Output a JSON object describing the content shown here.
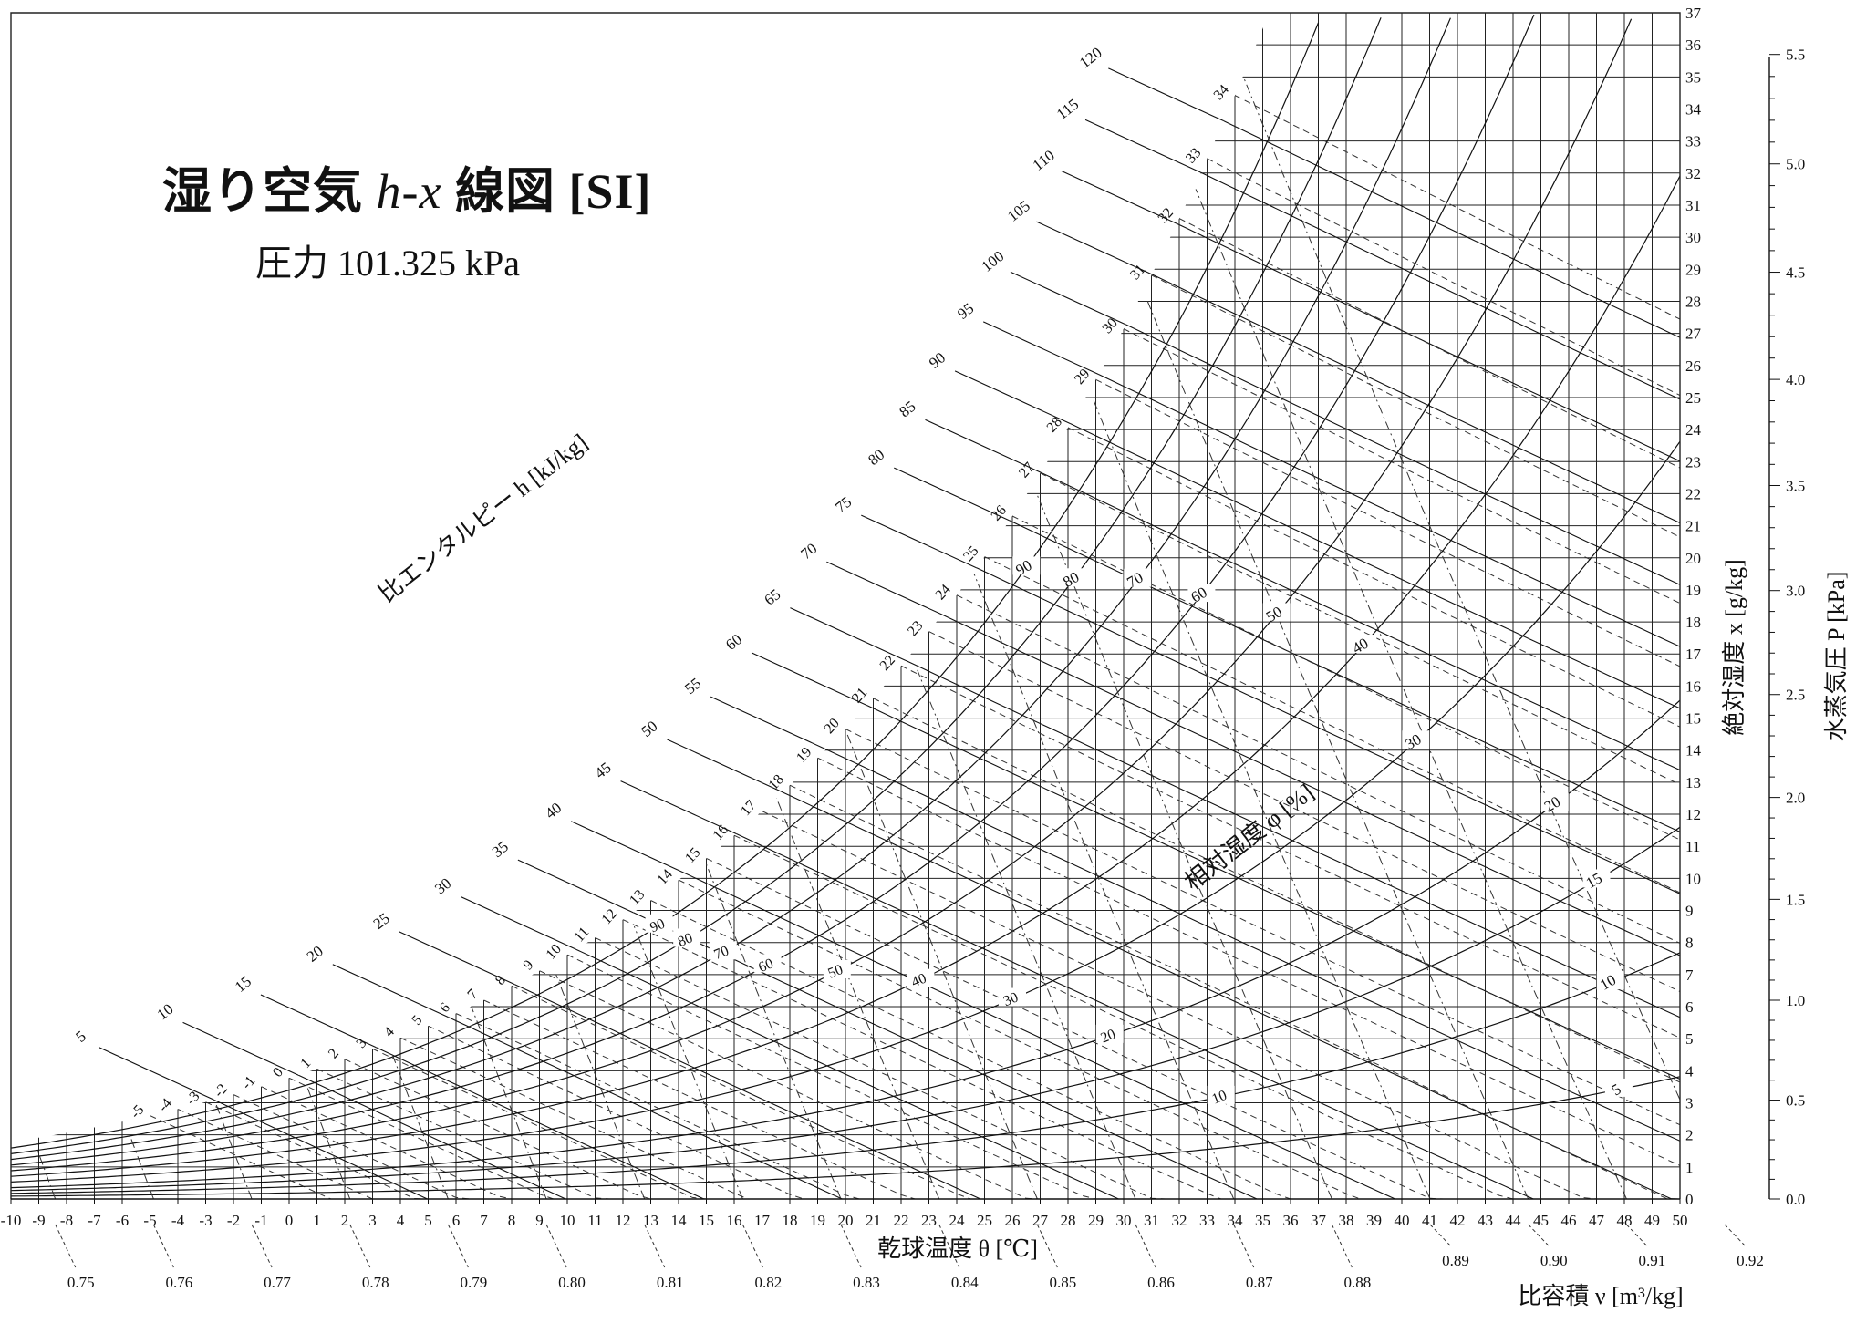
{
  "header": {
    "title_prefix": "湿り空気",
    "title_var": "h-x",
    "title_suffix": "線図 [SI]",
    "subtitle": "圧力 101.325 kPa"
  },
  "chart_data": {
    "type": "line",
    "title": "湿り空気 h-x 線図 [SI]",
    "subtitle": "圧力 101.325 kPa",
    "xlabel": "乾球温度 θ [℃]",
    "ylabel": "絶対湿度 x [g/kg]",
    "y2label": "水蒸気圧 P [kPa]",
    "enthalpy_label": "比エンタルピー h [kJ/kg]",
    "rh_label": "相対湿度 φ [%]",
    "volume_label": "比容積 ν [m³/kg]",
    "xlim": [
      -10,
      50
    ],
    "ylim": [
      0,
      37
    ],
    "x_ticks": [
      -10,
      -9,
      -8,
      -7,
      -6,
      -5,
      -4,
      -3,
      -2,
      -1,
      0,
      1,
      2,
      3,
      4,
      5,
      6,
      7,
      8,
      9,
      10,
      11,
      12,
      13,
      14,
      15,
      16,
      17,
      18,
      19,
      20,
      21,
      22,
      23,
      24,
      25,
      26,
      27,
      28,
      29,
      30,
      31,
      32,
      33,
      34,
      35,
      36,
      37,
      38,
      39,
      40,
      41,
      42,
      43,
      44,
      45,
      46,
      47,
      48,
      49,
      50
    ],
    "y_ticks": [
      0,
      1,
      2,
      3,
      4,
      5,
      6,
      7,
      8,
      9,
      10,
      11,
      12,
      13,
      14,
      15,
      16,
      17,
      18,
      19,
      20,
      21,
      22,
      23,
      24,
      25,
      26,
      27,
      28,
      29,
      30,
      31,
      32,
      33,
      34,
      35,
      36,
      37
    ],
    "pressure_ticks": [
      "0.0",
      "0.5",
      "1.0",
      "1.5",
      "2.0",
      "2.5",
      "3.0",
      "3.5",
      "4.0",
      "4.5",
      "5.0",
      "5.5"
    ],
    "enthalpy_values": [
      5,
      10,
      15,
      20,
      25,
      30,
      35,
      40,
      45,
      50,
      55,
      60,
      65,
      70,
      75,
      80,
      85,
      90,
      95,
      100,
      105,
      110,
      115,
      120
    ],
    "wet_bulb_values": [
      -5,
      -4,
      -3,
      -2,
      -1,
      0,
      1,
      2,
      3,
      4,
      5,
      6,
      7,
      8,
      9,
      10,
      11,
      12,
      13,
      14,
      15,
      16,
      17,
      18,
      19,
      20,
      21,
      22,
      23,
      24,
      25,
      26,
      27,
      28,
      29,
      30,
      31,
      32,
      33,
      34
    ],
    "rh_curves_upper": [
      90,
      80,
      70,
      60,
      50,
      40,
      30,
      20,
      15,
      10,
      5
    ],
    "rh_curves_lower": [
      90,
      80,
      70,
      60,
      50,
      40,
      30,
      20,
      10
    ],
    "specific_volume_values": [
      "0.75",
      "0.76",
      "0.77",
      "0.78",
      "0.79",
      "0.80",
      "0.81",
      "0.82",
      "0.83",
      "0.84",
      "0.85",
      "0.86",
      "0.87",
      "0.88",
      "0.89",
      "0.90",
      "0.91",
      "0.92"
    ],
    "grid": true
  }
}
